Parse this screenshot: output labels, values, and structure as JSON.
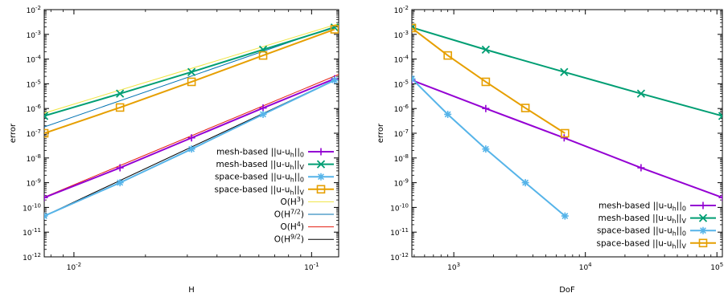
{
  "chart_data": [
    {
      "type": "line",
      "xlabel": "H",
      "ylabel": "error",
      "xscale": "log",
      "yscale": "log",
      "xlim": [
        0.0075,
        0.13
      ],
      "ylim": [
        1e-12,
        0.01
      ],
      "xticks": [
        {
          "value": 0.01,
          "mantissa": "10",
          "exp": "-2"
        },
        {
          "value": 0.1,
          "mantissa": "10",
          "exp": "-1"
        }
      ],
      "yticks": [
        {
          "value": 1e-12,
          "mantissa": "10",
          "exp": "-12"
        },
        {
          "value": 1e-11,
          "mantissa": "10",
          "exp": "-11"
        },
        {
          "value": 1e-10,
          "mantissa": "10",
          "exp": "-10"
        },
        {
          "value": 1e-09,
          "mantissa": "10",
          "exp": "-9"
        },
        {
          "value": 1e-08,
          "mantissa": "10",
          "exp": "-8"
        },
        {
          "value": 1e-07,
          "mantissa": "10",
          "exp": "-7"
        },
        {
          "value": 1e-06,
          "mantissa": "10",
          "exp": "-6"
        },
        {
          "value": 1e-05,
          "mantissa": "10",
          "exp": "-5"
        },
        {
          "value": 0.0001,
          "mantissa": "10",
          "exp": "-4"
        },
        {
          "value": 0.001,
          "mantissa": "10",
          "exp": "-3"
        },
        {
          "value": 0.01,
          "mantissa": "10",
          "exp": "-2"
        }
      ],
      "legend_position": "bottom-right",
      "series": [
        {
          "name": "mesh-based ||u-u",
          "name_sub": "h",
          "name_end": "||",
          "name_end_sub": "0",
          "color": "#9400d3",
          "marker": "plus",
          "width": 2,
          "x": [
            0.0075,
            0.015625,
            0.03125,
            0.0625,
            0.125
          ],
          "y": [
            2.5e-10,
            4e-09,
            6.5e-08,
            1.05e-06,
            1.6e-05
          ]
        },
        {
          "name": "mesh-based ||u-u",
          "name_sub": "h",
          "name_end": "||",
          "name_end_sub": "V",
          "color": "#009e73",
          "marker": "x",
          "width": 2,
          "x": [
            0.0075,
            0.015625,
            0.03125,
            0.0625,
            0.125
          ],
          "y": [
            5e-07,
            4e-06,
            3e-05,
            0.00024,
            0.0019
          ]
        },
        {
          "name": "space-based ||u-u",
          "name_sub": "h",
          "name_end": "||",
          "name_end_sub": "0",
          "color": "#56b4e9",
          "marker": "star",
          "width": 2,
          "x": [
            0.0075,
            0.015625,
            0.03125,
            0.0625,
            0.125
          ],
          "y": [
            4.5e-11,
            1e-09,
            2.3e-08,
            5.8e-07,
            1.4e-05
          ]
        },
        {
          "name": "space-based ||u-u",
          "name_sub": "h",
          "name_end": "||",
          "name_end_sub": "V",
          "color": "#e69f00",
          "marker": "square",
          "width": 2,
          "x": [
            0.0075,
            0.015625,
            0.03125,
            0.0625,
            0.125
          ],
          "y": [
            1e-07,
            1.1e-06,
            1.2e-05,
            0.00014,
            0.0016
          ]
        },
        {
          "name": "O(H",
          "name_sup": "3",
          "name_end": ")",
          "color": "#f0e442",
          "marker": "none",
          "width": 1,
          "x": [
            0.0075,
            0.13
          ],
          "y": [
            6.5e-07,
            0.0027
          ]
        },
        {
          "name": "O(H",
          "name_sup": "7/2",
          "name_end": ")",
          "color": "#0072b2",
          "marker": "none",
          "width": 1,
          "x": [
            0.0075,
            0.13
          ],
          "y": [
            1.8e-07,
            0.00235
          ]
        },
        {
          "name": "O(H",
          "name_sup": "4",
          "name_end": ")",
          "color": "#e51e10",
          "marker": "none",
          "width": 1,
          "x": [
            0.0075,
            0.13
          ],
          "y": [
            2.6e-10,
            2.4e-05
          ]
        },
        {
          "name": "O(H",
          "name_sup": "9/2",
          "name_end": ")",
          "color": "#000000",
          "marker": "none",
          "width": 1,
          "x": [
            0.0075,
            0.13
          ],
          "y": [
            4.5e-11,
            1.7e-05
          ]
        }
      ]
    },
    {
      "type": "line",
      "xlabel": "DoF",
      "ylabel": "error",
      "xscale": "log",
      "yscale": "log",
      "xlim": [
        480,
        110000
      ],
      "ylim": [
        1e-12,
        0.01
      ],
      "xticks": [
        {
          "value": 1000,
          "mantissa": "10",
          "exp": "3"
        },
        {
          "value": 10000,
          "mantissa": "10",
          "exp": "4"
        },
        {
          "value": 100000,
          "mantissa": "10",
          "exp": "5"
        }
      ],
      "yticks": [
        {
          "value": 1e-12,
          "mantissa": "10",
          "exp": "-12"
        },
        {
          "value": 1e-11,
          "mantissa": "10",
          "exp": "-11"
        },
        {
          "value": 1e-10,
          "mantissa": "10",
          "exp": "-10"
        },
        {
          "value": 1e-09,
          "mantissa": "10",
          "exp": "-9"
        },
        {
          "value": 1e-08,
          "mantissa": "10",
          "exp": "-8"
        },
        {
          "value": 1e-07,
          "mantissa": "10",
          "exp": "-7"
        },
        {
          "value": 1e-06,
          "mantissa": "10",
          "exp": "-6"
        },
        {
          "value": 1e-05,
          "mantissa": "10",
          "exp": "-5"
        },
        {
          "value": 0.0001,
          "mantissa": "10",
          "exp": "-4"
        },
        {
          "value": 0.001,
          "mantissa": "10",
          "exp": "-3"
        },
        {
          "value": 0.01,
          "mantissa": "10",
          "exp": "-2"
        }
      ],
      "legend_position": "bottom-right",
      "series": [
        {
          "name": "mesh-based ||u-u",
          "name_sub": "h",
          "name_end": "||",
          "name_end_sub": "0",
          "color": "#9400d3",
          "marker": "plus",
          "width": 2,
          "x": [
            480,
            1750,
            6900,
            26500,
            110000
          ],
          "y": [
            1.4e-05,
            1e-06,
            6.5e-08,
            4e-09,
            2.5e-10
          ]
        },
        {
          "name": "mesh-based ||u-u",
          "name_sub": "h",
          "name_end": "||",
          "name_end_sub": "V",
          "color": "#009e73",
          "marker": "x",
          "width": 2,
          "x": [
            480,
            1750,
            6900,
            26500,
            110000
          ],
          "y": [
            0.0019,
            0.00024,
            3e-05,
            4e-06,
            5e-07
          ]
        },
        {
          "name": "space-based ||u-u",
          "name_sub": "h",
          "name_end": "||",
          "name_end_sub": "0",
          "color": "#56b4e9",
          "marker": "star",
          "width": 2,
          "x": [
            480,
            900,
            1750,
            3500,
            7000
          ],
          "y": [
            1.6e-05,
            5.8e-07,
            2.3e-08,
            1e-09,
            4.5e-11
          ]
        },
        {
          "name": "space-based ||u-u",
          "name_sub": "h",
          "name_end": "||",
          "name_end_sub": "V",
          "color": "#e69f00",
          "marker": "square",
          "width": 2,
          "x": [
            480,
            900,
            1750,
            3500,
            7000
          ],
          "y": [
            0.0018,
            0.00014,
            1.2e-05,
            1.05e-06,
            1e-07
          ]
        }
      ]
    }
  ]
}
